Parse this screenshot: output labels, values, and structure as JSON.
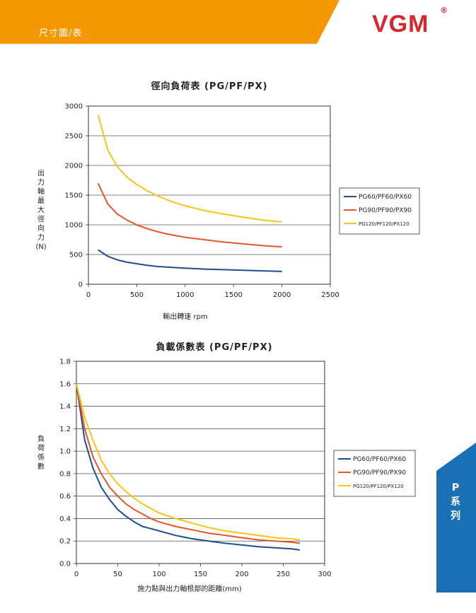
{
  "header": {
    "title": "尺寸圖/表",
    "band_color": "#f39800",
    "logo_text": "VGM",
    "logo_mark": "®",
    "logo_color": "#d7262d"
  },
  "side_tab": {
    "label": "P系列",
    "color": "#1a6fb5"
  },
  "colors": {
    "series1": "#1f4e8c",
    "series2": "#e8552b",
    "series3": "#f5c518"
  },
  "chart_data": [
    {
      "type": "line",
      "title": "徑向負荷表 (PG/PF/PX)",
      "xlabel": "輸出轉速 rpm",
      "ylabel": "出力軸最大徑向力(N)",
      "xlim": [
        0,
        2500
      ],
      "ylim": [
        0,
        3000
      ],
      "x_ticks": [
        "0",
        "500",
        "1000",
        "1500",
        "2000",
        "2500"
      ],
      "y_ticks": [
        "0",
        "500",
        "1000",
        "1500",
        "2000",
        "2500",
        "3000"
      ],
      "grid": "horizontal",
      "legend": "right",
      "x": [
        100,
        200,
        300,
        400,
        500,
        600,
        700,
        800,
        900,
        1000,
        1200,
        1400,
        1600,
        1800,
        2000
      ],
      "series": [
        {
          "name": "PG60/PF60/PX60",
          "values": [
            580,
            470,
            410,
            370,
            345,
            320,
            300,
            290,
            280,
            270,
            255,
            245,
            235,
            225,
            215
          ]
        },
        {
          "name": "PG90/PF90/PX90",
          "values": [
            1700,
            1350,
            1180,
            1080,
            1000,
            940,
            890,
            850,
            820,
            790,
            750,
            710,
            680,
            650,
            630
          ]
        },
        {
          "name": "PG120/PF120/PX120",
          "values": [
            2850,
            2260,
            1980,
            1800,
            1680,
            1580,
            1500,
            1430,
            1370,
            1320,
            1240,
            1180,
            1130,
            1080,
            1050
          ]
        }
      ]
    },
    {
      "type": "line",
      "title": "負載係數表 (PG/PF/PX)",
      "xlabel": "施力點與出力軸根部的距離(mm)",
      "ylabel": "負荷係數",
      "xlim": [
        0,
        300
      ],
      "ylim": [
        0,
        1.8
      ],
      "x_ticks": [
        "0",
        "50",
        "100",
        "150",
        "200",
        "250",
        "300"
      ],
      "y_ticks": [
        "0.0",
        "0.2",
        "0.4",
        "0.6",
        "0.8",
        "1.0",
        "1.2",
        "1.4",
        "1.6",
        "1.8"
      ],
      "grid": "horizontal",
      "legend": "right",
      "x": [
        0,
        10,
        20,
        30,
        40,
        50,
        60,
        70,
        80,
        90,
        100,
        120,
        140,
        160,
        180,
        200,
        220,
        240,
        260,
        270
      ],
      "series": [
        {
          "name": "PG60/PF60/PX60",
          "values": [
            1.6,
            1.1,
            0.85,
            0.68,
            0.57,
            0.48,
            0.42,
            0.37,
            0.33,
            0.31,
            0.29,
            0.25,
            0.22,
            0.2,
            0.18,
            0.165,
            0.15,
            0.14,
            0.13,
            0.12
          ]
        },
        {
          "name": "PG90/PF90/PX90",
          "values": [
            1.6,
            1.2,
            0.95,
            0.8,
            0.68,
            0.6,
            0.53,
            0.48,
            0.44,
            0.4,
            0.37,
            0.33,
            0.3,
            0.27,
            0.25,
            0.23,
            0.21,
            0.2,
            0.19,
            0.18
          ]
        },
        {
          "name": "PG120/PF120/PX120",
          "values": [
            1.6,
            1.3,
            1.1,
            0.92,
            0.8,
            0.71,
            0.64,
            0.58,
            0.53,
            0.49,
            0.45,
            0.4,
            0.36,
            0.32,
            0.29,
            0.27,
            0.25,
            0.23,
            0.22,
            0.21
          ]
        }
      ]
    }
  ]
}
